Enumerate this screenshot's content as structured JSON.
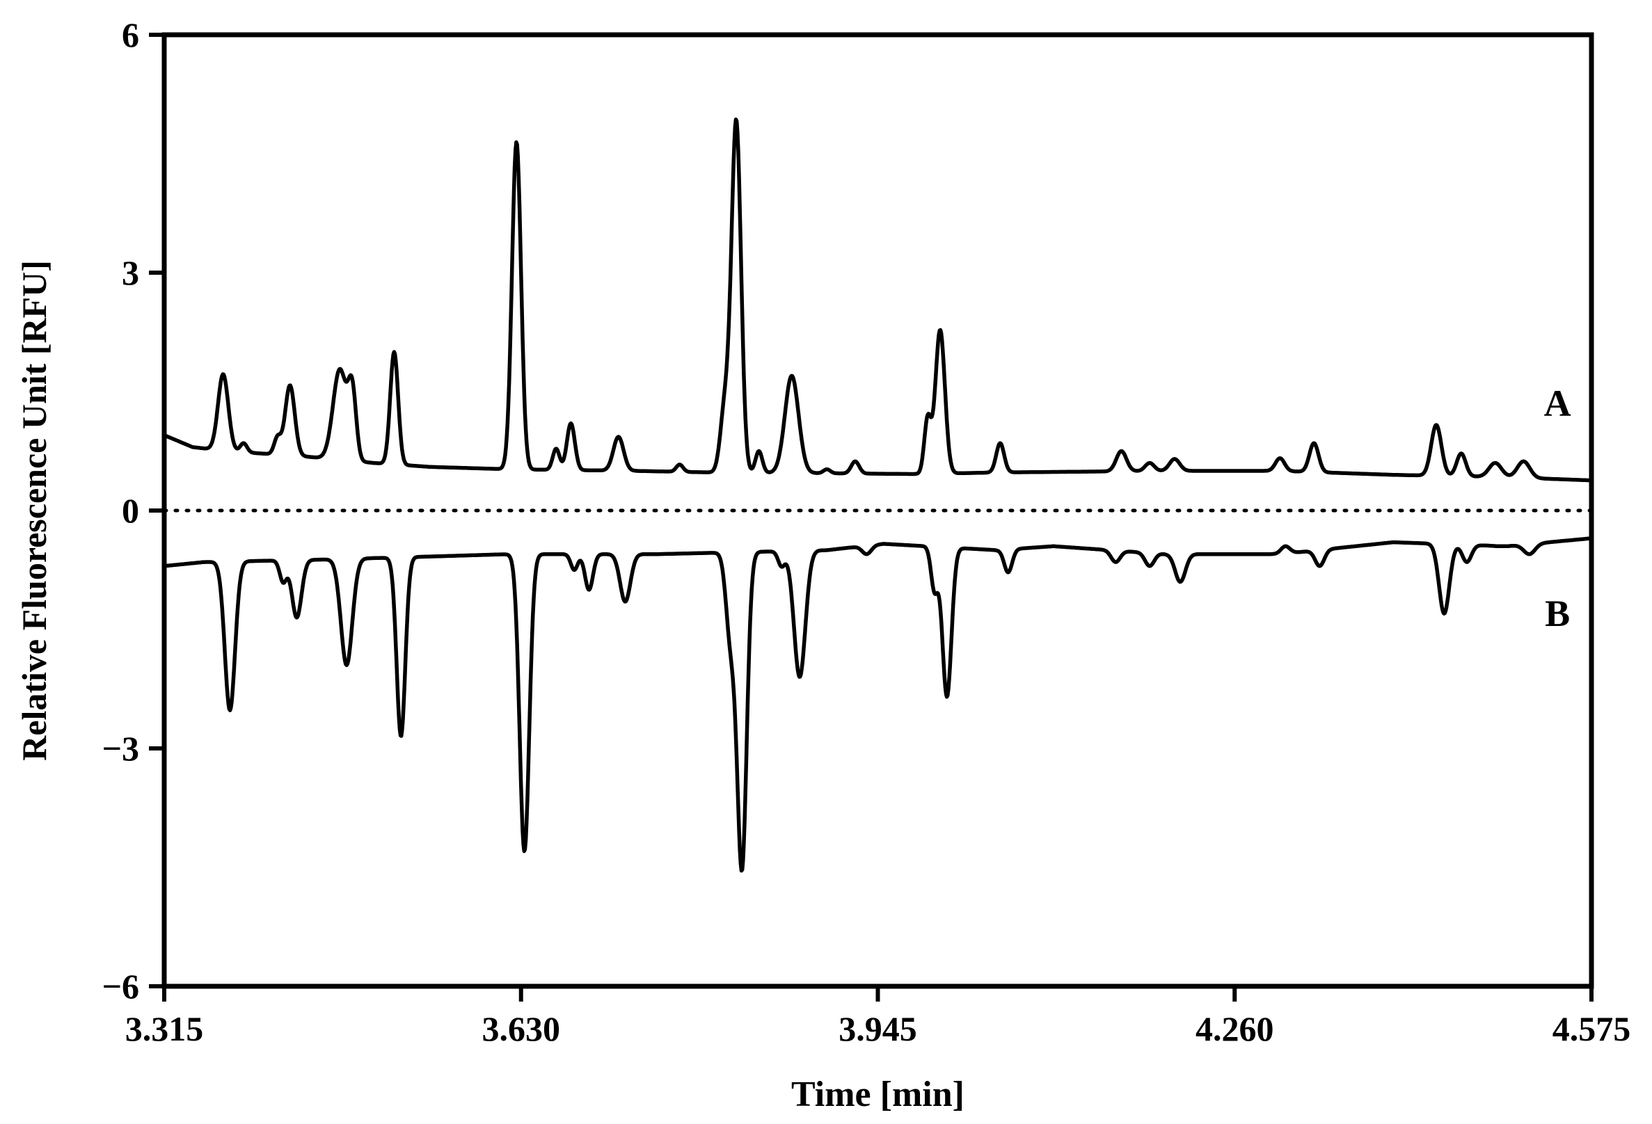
{
  "chart_data": {
    "type": "line",
    "title": "",
    "xlabel": "Time [min]",
    "ylabel": "Relative Fluorescence Unit [RFU]",
    "xlim": [
      3.315,
      4.575
    ],
    "ylim": [
      -6,
      6
    ],
    "x_ticks": [
      3.315,
      3.63,
      3.945,
      4.26,
      4.575
    ],
    "x_tick_labels": [
      "3.315",
      "3.630",
      "3.945",
      "4.260",
      "4.575"
    ],
    "y_ticks": [
      -6,
      -3,
      0,
      3,
      6
    ],
    "y_tick_labels": [
      "−6",
      "−3",
      "0",
      "3",
      "6"
    ],
    "grid": false,
    "reference_line": {
      "y": 0,
      "style": "dotted"
    },
    "line_color": "#000000",
    "series": [
      {
        "name": "A",
        "baseline": [
          [
            3.315,
            0.95
          ],
          [
            3.34,
            0.8
          ],
          [
            3.37,
            0.75
          ],
          [
            3.44,
            0.68
          ],
          [
            3.5,
            0.6
          ],
          [
            3.55,
            0.55
          ],
          [
            3.62,
            0.52
          ],
          [
            3.73,
            0.5
          ],
          [
            3.8,
            0.48
          ],
          [
            3.9,
            0.47
          ],
          [
            3.98,
            0.46
          ],
          [
            4.05,
            0.48
          ],
          [
            4.2,
            0.5
          ],
          [
            4.3,
            0.5
          ],
          [
            4.4,
            0.45
          ],
          [
            4.5,
            0.42
          ],
          [
            4.575,
            0.38
          ]
        ],
        "peaks": [
          {
            "t": 3.367,
            "h": 1.72,
            "w": 0.0045
          },
          {
            "t": 3.385,
            "h": 0.85,
            "w": 0.003
          },
          {
            "t": 3.415,
            "h": 0.92,
            "w": 0.003
          },
          {
            "t": 3.426,
            "h": 1.58,
            "w": 0.0042
          },
          {
            "t": 3.47,
            "h": 1.78,
            "w": 0.006
          },
          {
            "t": 3.481,
            "h": 1.45,
            "w": 0.0035
          },
          {
            "t": 3.518,
            "h": 2.0,
            "w": 0.0035
          },
          {
            "t": 3.626,
            "h": 4.65,
            "w": 0.004
          },
          {
            "t": 3.661,
            "h": 0.78,
            "w": 0.003
          },
          {
            "t": 3.674,
            "h": 1.1,
            "w": 0.0035
          },
          {
            "t": 3.716,
            "h": 0.93,
            "w": 0.0045
          },
          {
            "t": 3.77,
            "h": 0.58,
            "w": 0.003
          },
          {
            "t": 3.81,
            "h": 1.3,
            "w": 0.004
          },
          {
            "t": 3.82,
            "h": 4.9,
            "w": 0.0042
          },
          {
            "t": 3.84,
            "h": 0.75,
            "w": 0.003
          },
          {
            "t": 3.869,
            "h": 1.7,
            "w": 0.006
          },
          {
            "t": 3.9,
            "h": 0.52,
            "w": 0.003
          },
          {
            "t": 3.925,
            "h": 0.62,
            "w": 0.0035
          },
          {
            "t": 3.989,
            "h": 1.15,
            "w": 0.003
          },
          {
            "t": 4.0,
            "h": 2.28,
            "w": 0.0042
          },
          {
            "t": 4.053,
            "h": 0.85,
            "w": 0.0035
          },
          {
            "t": 4.16,
            "h": 0.75,
            "w": 0.0045
          },
          {
            "t": 4.185,
            "h": 0.6,
            "w": 0.004
          },
          {
            "t": 4.207,
            "h": 0.65,
            "w": 0.0045
          },
          {
            "t": 4.3,
            "h": 0.66,
            "w": 0.004
          },
          {
            "t": 4.33,
            "h": 0.85,
            "w": 0.004
          },
          {
            "t": 4.438,
            "h": 1.08,
            "w": 0.0045
          },
          {
            "t": 4.46,
            "h": 0.72,
            "w": 0.004
          },
          {
            "t": 4.49,
            "h": 0.6,
            "w": 0.0055
          },
          {
            "t": 4.515,
            "h": 0.62,
            "w": 0.0055
          }
        ]
      },
      {
        "name": "B",
        "baseline": [
          [
            3.315,
            -0.7
          ],
          [
            3.35,
            -0.65
          ],
          [
            3.45,
            -0.62
          ],
          [
            3.55,
            -0.58
          ],
          [
            3.62,
            -0.55
          ],
          [
            3.75,
            -0.55
          ],
          [
            3.9,
            -0.5
          ],
          [
            3.95,
            -0.42
          ],
          [
            4.05,
            -0.5
          ],
          [
            4.1,
            -0.45
          ],
          [
            4.2,
            -0.55
          ],
          [
            4.3,
            -0.55
          ],
          [
            4.4,
            -0.4
          ],
          [
            4.5,
            -0.45
          ],
          [
            4.575,
            -0.35
          ]
        ],
        "peaks": [
          {
            "t": 3.373,
            "h": -2.52,
            "w": 0.0045
          },
          {
            "t": 3.42,
            "h": -0.9,
            "w": 0.003
          },
          {
            "t": 3.432,
            "h": -1.35,
            "w": 0.0042
          },
          {
            "t": 3.476,
            "h": -1.95,
            "w": 0.005
          },
          {
            "t": 3.524,
            "h": -2.85,
            "w": 0.0038
          },
          {
            "t": 3.633,
            "h": -4.3,
            "w": 0.0042
          },
          {
            "t": 3.677,
            "h": -0.75,
            "w": 0.003
          },
          {
            "t": 3.69,
            "h": -1.0,
            "w": 0.0035
          },
          {
            "t": 3.722,
            "h": -1.15,
            "w": 0.0045
          },
          {
            "t": 3.815,
            "h": -1.6,
            "w": 0.004
          },
          {
            "t": 3.825,
            "h": -4.5,
            "w": 0.0042
          },
          {
            "t": 3.86,
            "h": -0.7,
            "w": 0.003
          },
          {
            "t": 3.876,
            "h": -2.1,
            "w": 0.005
          },
          {
            "t": 3.935,
            "h": -0.55,
            "w": 0.004
          },
          {
            "t": 3.995,
            "h": -1.0,
            "w": 0.003
          },
          {
            "t": 4.006,
            "h": -2.35,
            "w": 0.004
          },
          {
            "t": 4.06,
            "h": -0.78,
            "w": 0.0035
          },
          {
            "t": 4.155,
            "h": -0.65,
            "w": 0.004
          },
          {
            "t": 4.185,
            "h": -0.7,
            "w": 0.004
          },
          {
            "t": 4.212,
            "h": -0.9,
            "w": 0.0045
          },
          {
            "t": 4.28,
            "h": -0.55,
            "w": 0.004
          },
          {
            "t": 4.305,
            "h": -0.45,
            "w": 0.004
          },
          {
            "t": 4.335,
            "h": -0.7,
            "w": 0.004
          },
          {
            "t": 4.445,
            "h": -1.3,
            "w": 0.0045
          },
          {
            "t": 4.465,
            "h": -0.65,
            "w": 0.004
          },
          {
            "t": 4.495,
            "h": -0.45,
            "w": 0.005
          },
          {
            "t": 4.52,
            "h": -0.55,
            "w": 0.005
          }
        ]
      }
    ]
  }
}
